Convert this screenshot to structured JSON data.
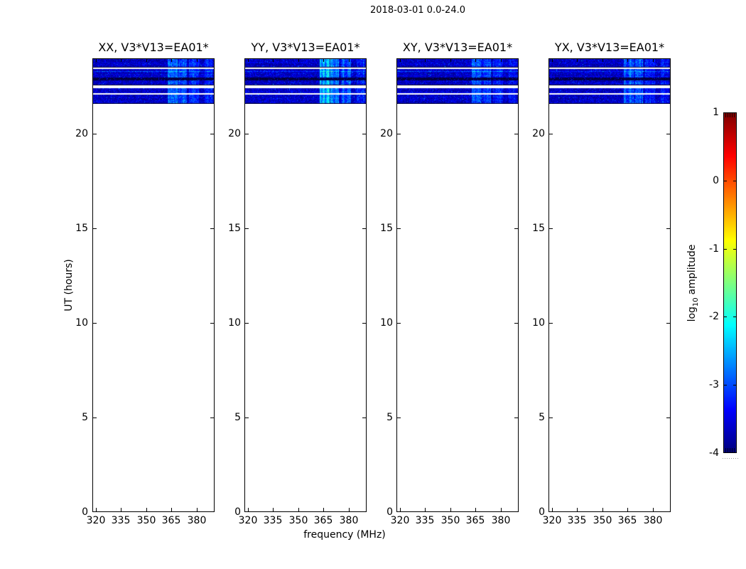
{
  "figure": {
    "suptitle": "2018-03-01 0.0-24.0",
    "background": "#ffffff",
    "text_color": "#000000"
  },
  "chart_data": {
    "type": "heatmap",
    "title": "2018-03-01 0.0-24.0",
    "xlabel": "frequency (MHz)",
    "ylabel": "UT (hours)",
    "x_range": [
      318.3,
      390.3
    ],
    "y_range": [
      0.0,
      24.0
    ],
    "x_ticks": [
      320,
      335,
      350,
      365,
      380
    ],
    "y_ticks": [
      0,
      5,
      10,
      15,
      20
    ],
    "grid": false,
    "panels": [
      {
        "pol": "XX",
        "title": "XX, V3*V13=EA01*",
        "brightness": 1.0
      },
      {
        "pol": "YY",
        "title": "YY, V3*V13=EA01*",
        "brightness": 1.3
      },
      {
        "pol": "XY",
        "title": "XY, V3*V13=EA01*",
        "brightness": 0.78
      },
      {
        "pol": "YX",
        "title": "YX, V3*V13=EA01*",
        "brightness": 0.85
      }
    ],
    "colorbar": {
      "label": "log10 amplitude",
      "label_prefix": "log",
      "label_sub": "10",
      "label_suffix": "amplitude",
      "ticks": [
        1,
        0,
        -1,
        -2,
        -3,
        -4
      ],
      "vmin": -4,
      "vmax": 1,
      "colormap": "jet"
    },
    "signal": {
      "description": "blue noise spectrogram present only between UT 21.6 and 24.0 hours; rest of panels empty (white)",
      "time_span_hours": [
        21.6,
        24.0
      ],
      "noise_base_log10": -3.85,
      "bands_top_to_bottom": [
        {
          "type": "noise",
          "rows": 11
        },
        {
          "type": "darkline",
          "rows": 1
        },
        {
          "type": "gap",
          "rows": 2
        },
        {
          "type": "noise",
          "rows": 12,
          "bright_row": 3
        },
        {
          "type": "dark",
          "rows": 4
        },
        {
          "type": "noise",
          "rows": 6
        },
        {
          "type": "darkline",
          "rows": 1
        },
        {
          "type": "gap",
          "rows": 4
        },
        {
          "type": "noise",
          "rows": 7
        },
        {
          "type": "gap",
          "rows": 2
        },
        {
          "type": "noise",
          "rows": 12
        },
        {
          "type": "darkline",
          "rows": 1
        }
      ],
      "rfi_enhancements": [
        {
          "f0": 0.615,
          "f1": 0.695,
          "boost": 1.0
        },
        {
          "f0": 0.705,
          "f1": 0.775,
          "boost": 0.85
        },
        {
          "f0": 0.79,
          "f1": 0.875,
          "boost": 0.55
        },
        {
          "f0": 0.92,
          "f1": 0.985,
          "boost": 0.45
        }
      ]
    }
  }
}
